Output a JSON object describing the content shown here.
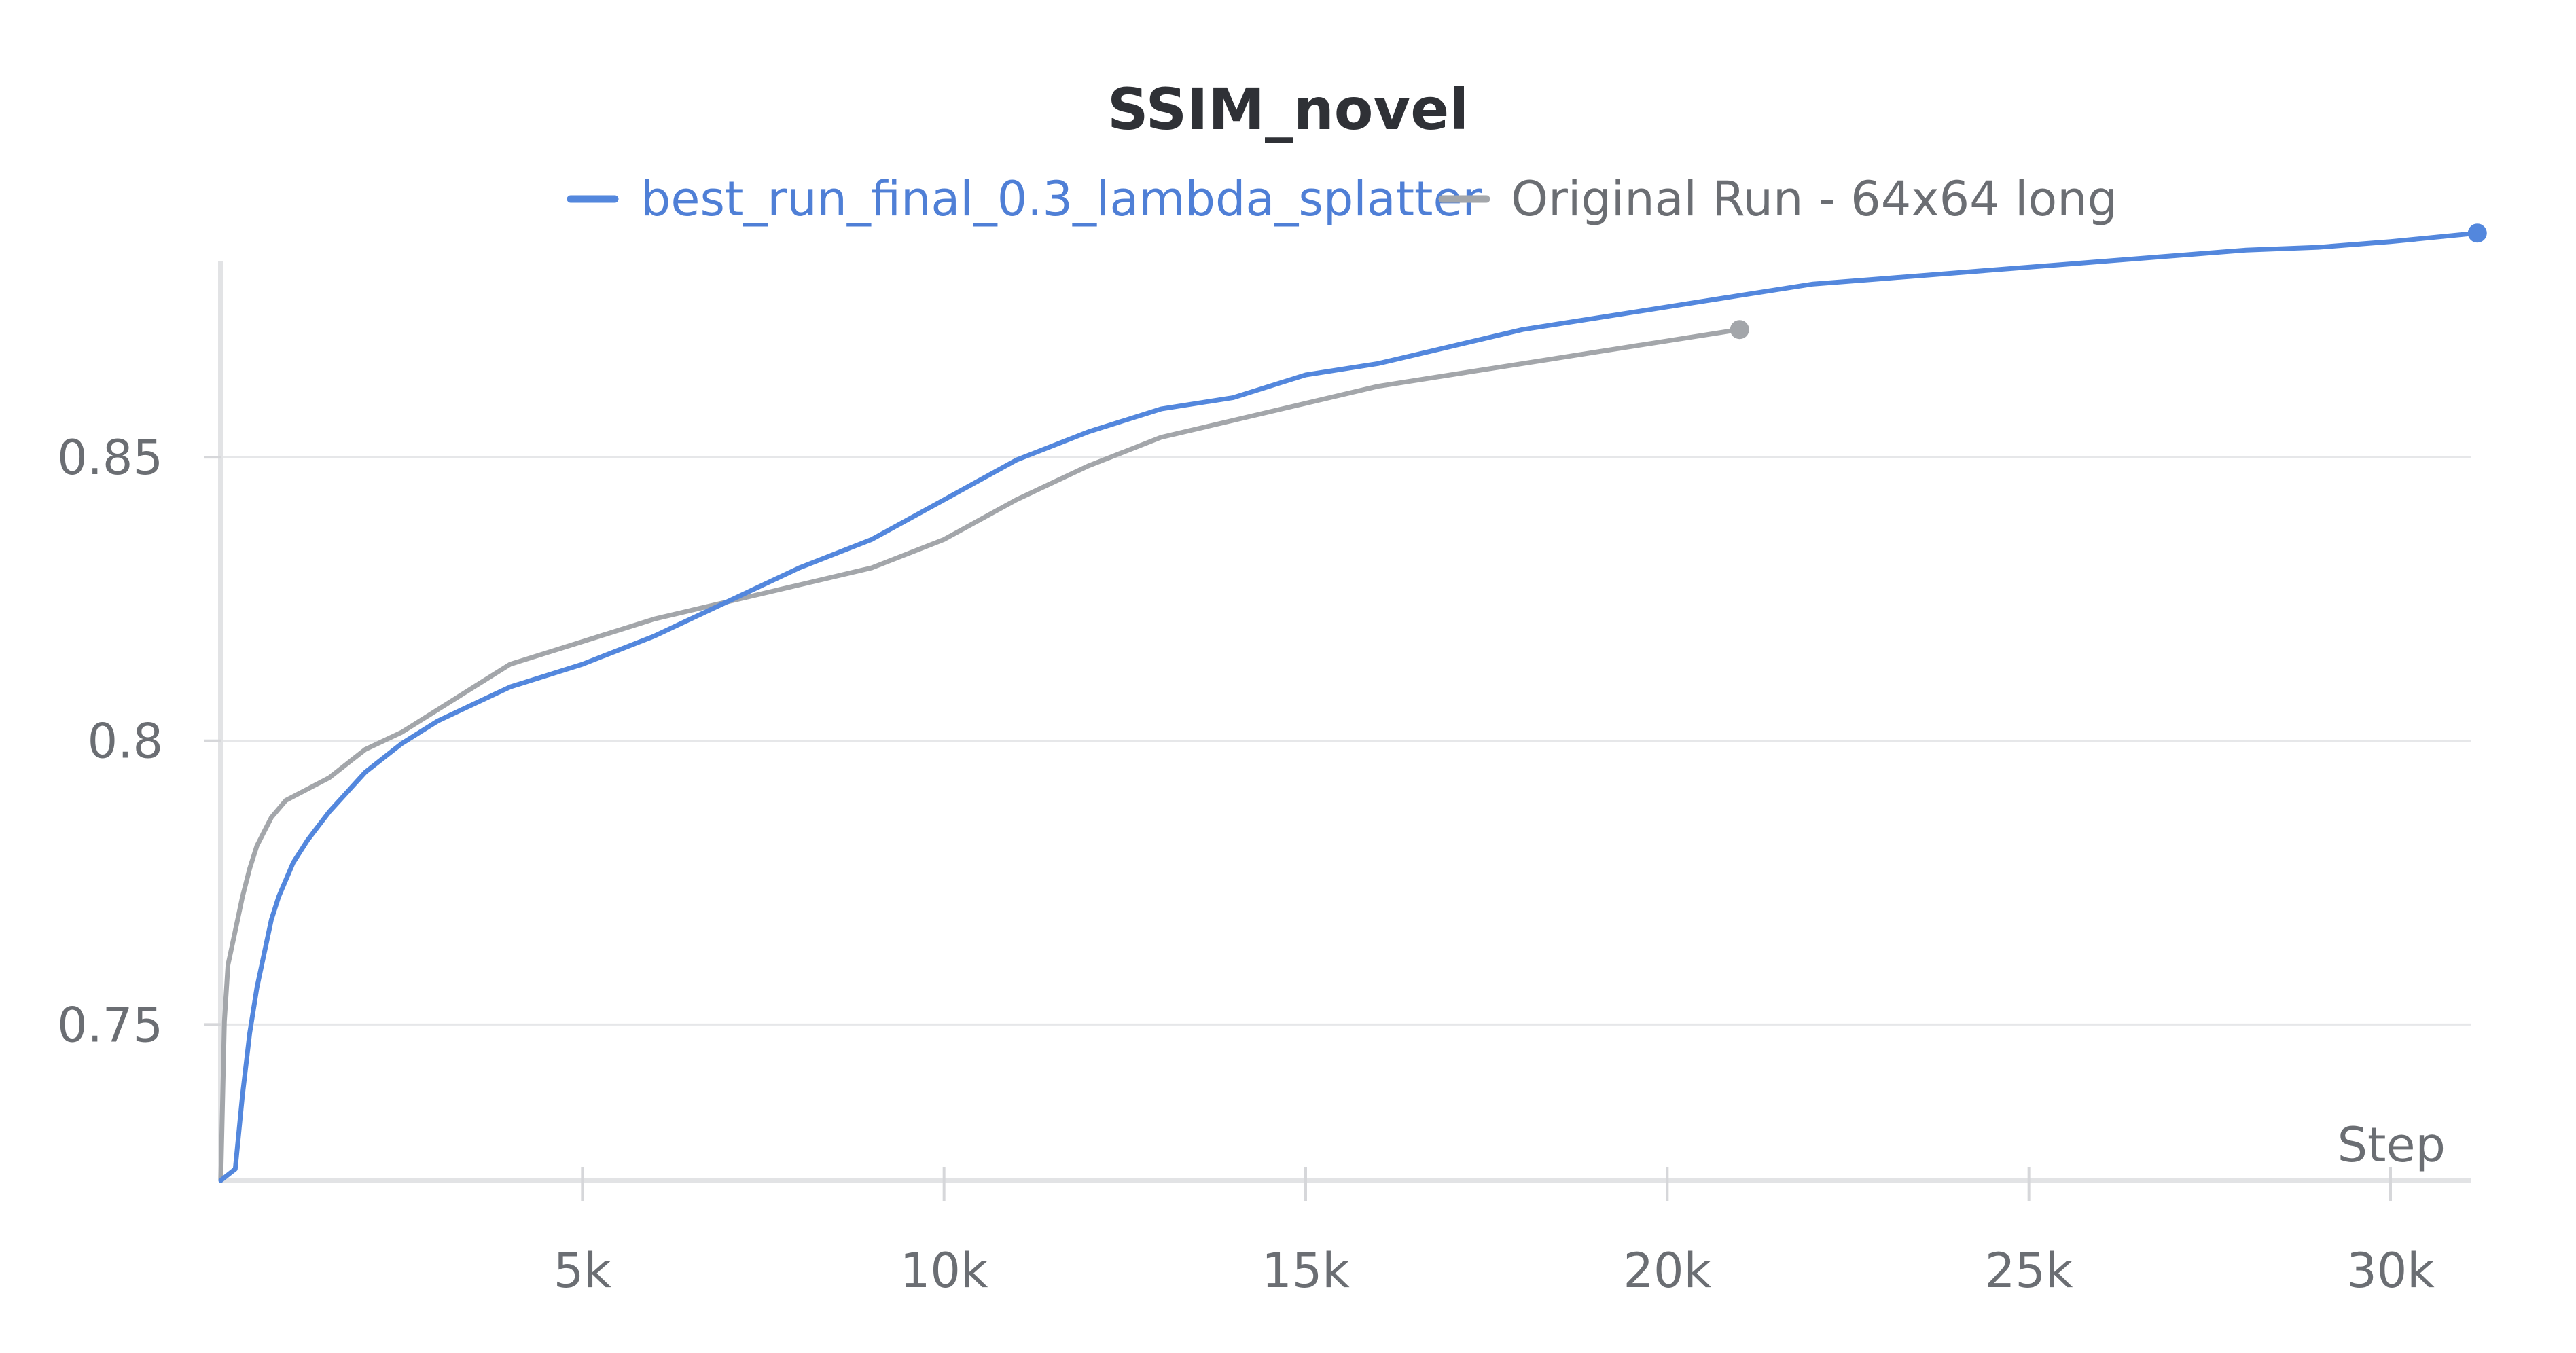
{
  "chart_data": {
    "type": "line",
    "title": "SSIM_novel",
    "xlabel": "Step",
    "ylabel": "",
    "legend_position": "top-center",
    "grid": true,
    "xlim": [
      0,
      31300
    ],
    "ylim": [
      0.7225,
      0.8845
    ],
    "x_ticks": [
      5000,
      10000,
      15000,
      20000,
      25000,
      30000
    ],
    "x_tick_labels": [
      "5k",
      "10k",
      "15k",
      "20k",
      "25k",
      "30k"
    ],
    "y_ticks": [
      0.75,
      0.8,
      0.85
    ],
    "y_tick_labels": [
      "0.75",
      "0.8",
      "0.85"
    ],
    "series": [
      {
        "name": "best_run_final_0.3_lambda_splatter",
        "color": "#5387DD",
        "x": [
          0,
          200,
          300,
          400,
          500,
          700,
          800,
          1000,
          1200,
          1500,
          2000,
          2500,
          3000,
          3500,
          4000,
          5000,
          6000,
          7000,
          8000,
          9000,
          10000,
          11000,
          12000,
          13000,
          14000,
          15000,
          16000,
          17000,
          18000,
          19000,
          20000,
          21000,
          22000,
          23000,
          24000,
          25000,
          26000,
          27000,
          28000,
          29000,
          30000,
          31200
        ],
        "y": [
          0.7225,
          0.7245,
          0.7375,
          0.7485,
          0.7565,
          0.7685,
          0.7725,
          0.7785,
          0.7825,
          0.7875,
          0.7945,
          0.7995,
          0.8035,
          0.8065,
          0.8095,
          0.8135,
          0.8185,
          0.8245,
          0.8305,
          0.8355,
          0.8425,
          0.8495,
          0.8545,
          0.8585,
          0.8605,
          0.8645,
          0.8665,
          0.8695,
          0.8725,
          0.8745,
          0.8765,
          0.8785,
          0.8805,
          0.8815,
          0.8825,
          0.8835,
          0.8845,
          0.8855,
          0.8865,
          0.887,
          0.888,
          0.8895
        ]
      },
      {
        "name": "Original Run - 64x64 long",
        "color": "#A3A6AA",
        "x": [
          0,
          50,
          100,
          200,
          300,
          400,
          500,
          700,
          900,
          1200,
          1500,
          2000,
          2500,
          3000,
          3500,
          4000,
          5000,
          6000,
          7000,
          8000,
          9000,
          10000,
          11000,
          12000,
          13000,
          14000,
          15000,
          16000,
          17000,
          18000,
          19000,
          20000,
          21000
        ],
        "y": [
          0.7225,
          0.7505,
          0.7605,
          0.7665,
          0.7725,
          0.7775,
          0.7815,
          0.7865,
          0.7895,
          0.7915,
          0.7935,
          0.7985,
          0.8015,
          0.8055,
          0.8095,
          0.8135,
          0.8175,
          0.8215,
          0.8245,
          0.8275,
          0.8305,
          0.8355,
          0.8425,
          0.8485,
          0.8535,
          0.8565,
          0.8595,
          0.8625,
          0.8645,
          0.8665,
          0.8685,
          0.8705,
          0.8725
        ]
      }
    ]
  }
}
